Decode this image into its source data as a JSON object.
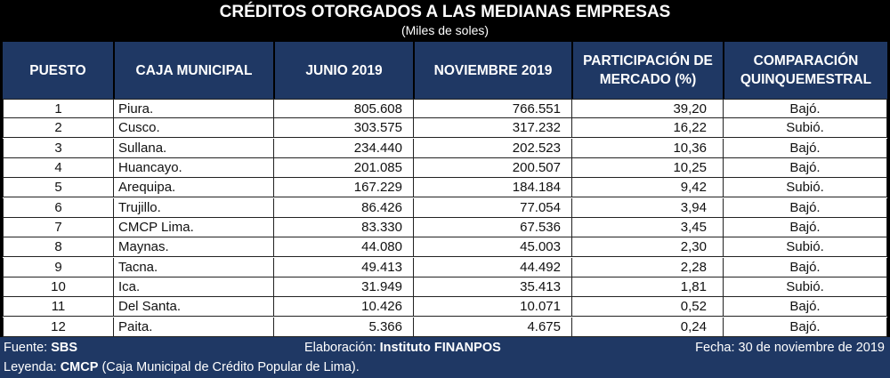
{
  "title": "CRÉDITOS OTORGADOS A LAS MEDIANAS EMPRESAS",
  "subtitle": "(Miles de soles)",
  "columns": {
    "puesto": "PUESTO",
    "caja": "CAJA MUNICIPAL",
    "junio": "JUNIO 2019",
    "noviembre": "NOVIEMBRE 2019",
    "participacion_1": "PARTICIPACIÓN DE",
    "participacion_2": "MERCADO (%)",
    "comparacion_1": "COMPARACIÓN",
    "comparacion_2": "QUINQUEMESTRAL"
  },
  "rows": [
    {
      "puesto": "1",
      "caja": "Piura.",
      "junio": "805.608",
      "noviembre": "766.551",
      "participacion": "39,20",
      "comparacion": "Bajó."
    },
    {
      "puesto": "2",
      "caja": "Cusco.",
      "junio": "303.575",
      "noviembre": "317.232",
      "participacion": "16,22",
      "comparacion": "Subió."
    },
    {
      "puesto": "3",
      "caja": "Sullana.",
      "junio": "234.440",
      "noviembre": "202.523",
      "participacion": "10,36",
      "comparacion": "Bajó."
    },
    {
      "puesto": "4",
      "caja": "Huancayo.",
      "junio": "201.085",
      "noviembre": "200.507",
      "participacion": "10,25",
      "comparacion": "Bajó."
    },
    {
      "puesto": "5",
      "caja": "Arequipa.",
      "junio": "167.229",
      "noviembre": "184.184",
      "participacion": "9,42",
      "comparacion": "Subió."
    },
    {
      "puesto": "6",
      "caja": "Trujillo.",
      "junio": "86.426",
      "noviembre": "77.054",
      "participacion": "3,94",
      "comparacion": "Bajó."
    },
    {
      "puesto": "7",
      "caja": "CMCP Lima.",
      "junio": "83.330",
      "noviembre": "67.536",
      "participacion": "3,45",
      "comparacion": "Bajó."
    },
    {
      "puesto": "8",
      "caja": "Maynas.",
      "junio": "44.080",
      "noviembre": "45.003",
      "participacion": "2,30",
      "comparacion": "Subió."
    },
    {
      "puesto": "9",
      "caja": "Tacna.",
      "junio": "49.413",
      "noviembre": "44.492",
      "participacion": "2,28",
      "comparacion": "Bajó."
    },
    {
      "puesto": "10",
      "caja": "Ica.",
      "junio": "31.949",
      "noviembre": "35.413",
      "participacion": "1,81",
      "comparacion": "Subió."
    },
    {
      "puesto": "11",
      "caja": "Del Santa.",
      "junio": "10.426",
      "noviembre": "10.071",
      "participacion": "0,52",
      "comparacion": "Bajó."
    },
    {
      "puesto": "12",
      "caja": "Paita.",
      "junio": "5.366",
      "noviembre": "4.675",
      "participacion": "0,24",
      "comparacion": "Bajó."
    }
  ],
  "footer": {
    "fuente_label": "Fuente:",
    "fuente_value": "SBS",
    "elaboracion_label": "Elaboración:",
    "elaboracion_value": "Instituto FINANPOS",
    "fecha": "Fecha: 30 de noviembre de 2019",
    "leyenda_label": "Leyenda:",
    "leyenda_abbr": "CMCP",
    "leyenda_text": "(Caja Municipal de Crédito Popular de Lima)."
  },
  "colors": {
    "header_bg": "#1f3864",
    "top_band": "#000000",
    "body_bg": "#ffffff"
  }
}
